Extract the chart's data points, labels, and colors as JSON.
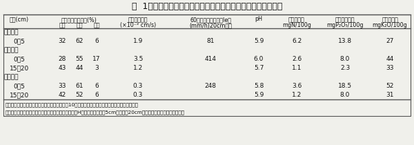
{
  "title": "表  1　　耕作棚田、遂休棚田、放牧棚田の土壌の物理・化学性",
  "bg_color": "#f0f0eb",
  "border_color": "#555555",
  "text_color": "#111111",
  "header_top_labels": [
    "深さ(cm)",
    "採土時の三相分布(%)",
    "",
    "",
    "飽和透水係数",
    "60分後の水の浸入度Ie。",
    "pH",
    "硷酸態窒素",
    "可給態りん酸",
    "交換性カリ"
  ],
  "header_sub_labels": [
    "",
    "固相",
    "液相",
    "気相",
    "(×10⁻² cm/s)",
    "(mm/h)20cm埋設",
    "",
    "mgN/100g",
    "mgP₂O₅/100g",
    "mgK₂O/100g"
  ],
  "sections": [
    {
      "name": "耕作棚田",
      "rows": [
        [
          "0～5",
          "32",
          "62",
          "6",
          "1.9",
          "81",
          "5.9",
          "6.2",
          "13.8",
          "27"
        ]
      ]
    },
    {
      "name": "遂休棚田",
      "rows": [
        [
          "0～5",
          "28",
          "55",
          "17",
          "3.5",
          "414",
          "6.0",
          "2.6",
          "8.0",
          "44"
        ],
        [
          "15～20",
          "43",
          "44",
          "3",
          "1.2",
          "",
          "5.7",
          "1.1",
          "2.3",
          "33"
        ]
      ]
    },
    {
      "name": "放牧棚田",
      "rows": [
        [
          "0～5",
          "33",
          "61",
          "6",
          "0.3",
          "248",
          "5.8",
          "3.6",
          "18.5",
          "52"
        ],
        [
          "15～20",
          "42",
          "52",
          "6",
          "0.3",
          "",
          "5.9",
          "1.2",
          "8.0",
          "31"
        ]
      ]
    }
  ],
  "note1": "注：棚田は互いに隣接している。遂休棚田は絀10年休耕、放牧棚田は数年休耕後に１年間放牧。",
  "note2": "　　遂休棚田と放牧棚田の各数値は飽和透水係数とｐHを除き、深さ０～5cmと１５～20cmの間は連続的に変化していた。"
}
